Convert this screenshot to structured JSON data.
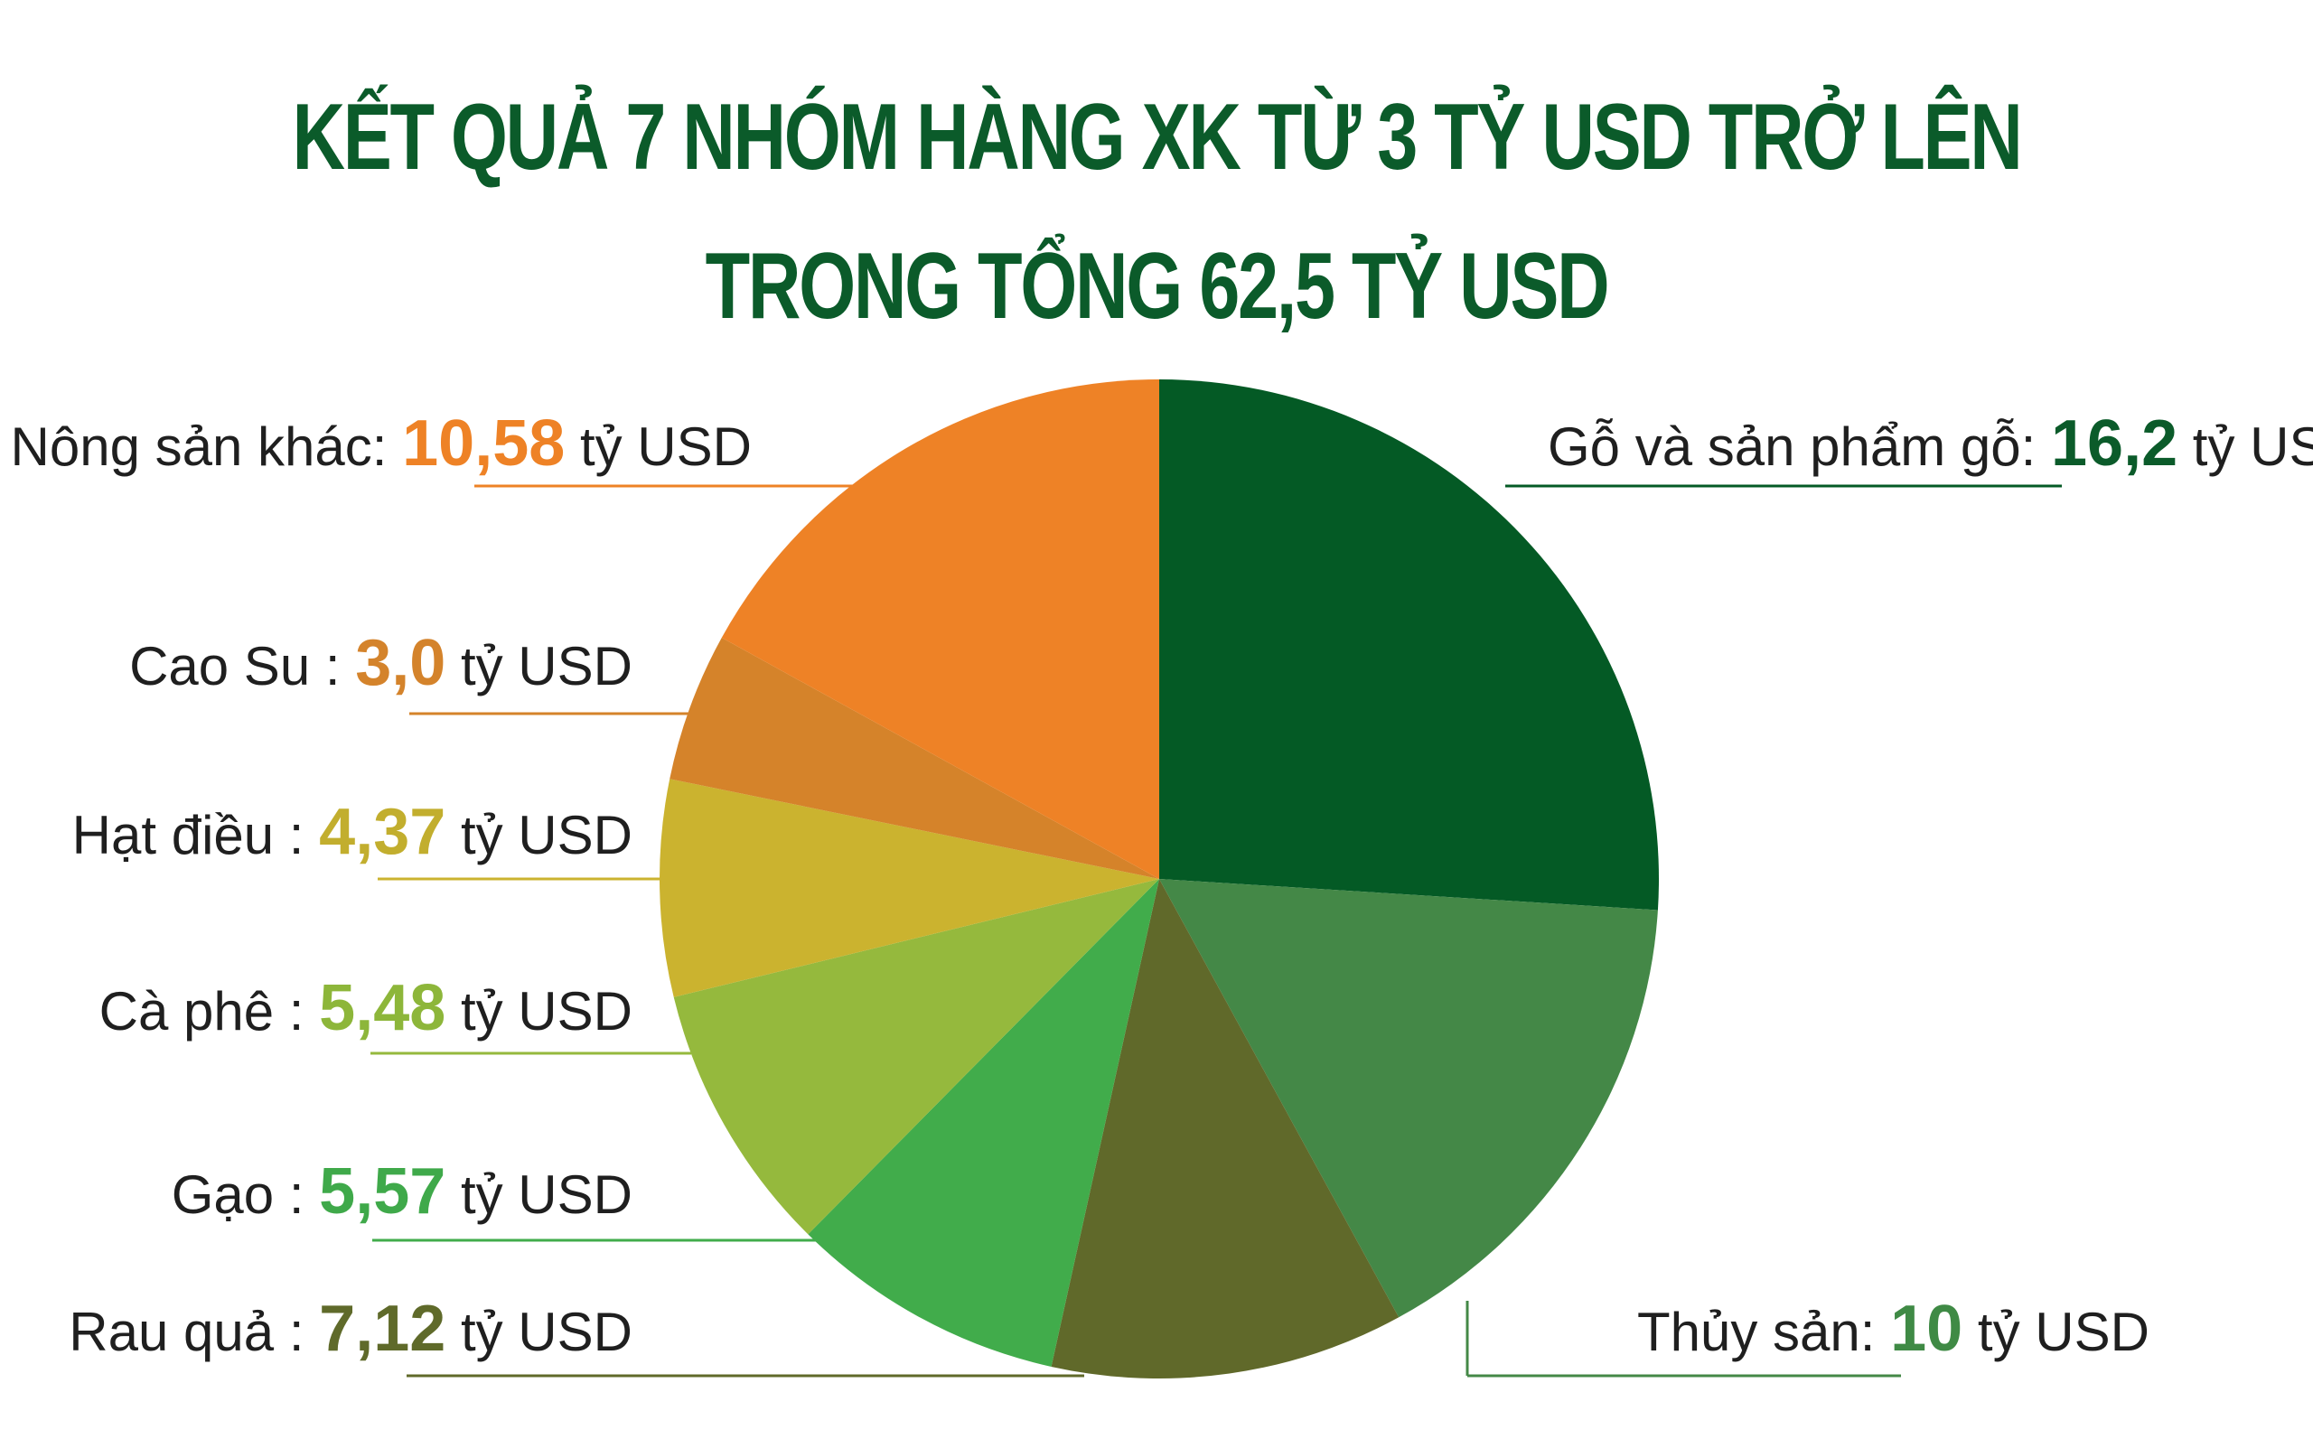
{
  "title_lines": [
    "KẾT QUẢ 7 NHÓM HÀNG XK TỪ 3 TỶ USD TRỞ LÊN",
    "TRONG TỔNG 62,5 TỶ USD"
  ],
  "chart_data": {
    "type": "pie",
    "unit": "tỷ USD",
    "slices": [
      {
        "label": "Gỗ và sản phẩm gỗ:",
        "value": 16.2,
        "value_text": "16,2",
        "color": "#045a25",
        "value_color": "#0b5b2a"
      },
      {
        "label": "Thủy sản:",
        "value": 10,
        "value_text": "10",
        "color": "#448847",
        "value_color": "#3f8a45"
      },
      {
        "label": "Rau quả :",
        "value": 7.12,
        "value_text": "7,12",
        "color": "#60692a",
        "value_color": "#5f6a2a"
      },
      {
        "label": "Gạo :",
        "value": 5.57,
        "value_text": "5,57",
        "color": "#41ac4b",
        "value_color": "#3fa94a"
      },
      {
        "label": "Cà phê :",
        "value": 5.48,
        "value_text": "5,48",
        "color": "#95b93d",
        "value_color": "#8db63a"
      },
      {
        "label": "Hạt điều :",
        "value": 4.37,
        "value_text": "4,37",
        "color": "#cbb32f",
        "value_color": "#c2ae2e"
      },
      {
        "label": "Cao Su :",
        "value": 3.0,
        "value_text": "3,0",
        "color": "#d5832a",
        "value_color": "#d4832b"
      },
      {
        "label": "Nông sản khác:",
        "value": 10.58,
        "value_text": "10,58",
        "color": "#ee8226",
        "value_color": "#ee8226"
      }
    ]
  }
}
